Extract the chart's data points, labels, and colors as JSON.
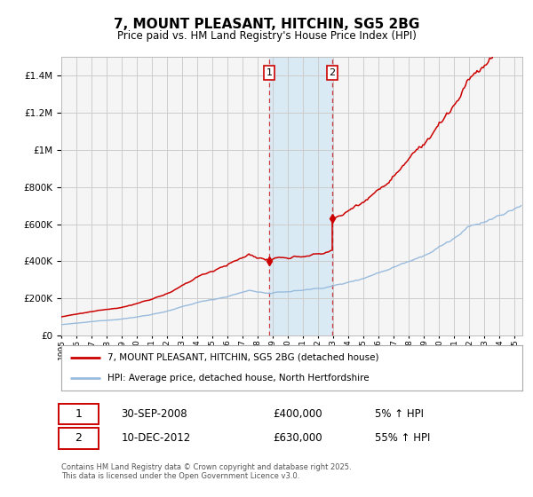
{
  "title": "7, MOUNT PLEASANT, HITCHIN, SG5 2BG",
  "subtitle": "Price paid vs. HM Land Registry's House Price Index (HPI)",
  "ylim": [
    0,
    1500000
  ],
  "yticks": [
    0,
    200000,
    400000,
    600000,
    800000,
    1000000,
    1200000,
    1400000
  ],
  "ytick_labels": [
    "£0",
    "£200K",
    "£400K",
    "£600K",
    "£800K",
    "£1M",
    "£1.2M",
    "£1.4M"
  ],
  "background_color": "#ffffff",
  "plot_bg_color": "#f5f5f5",
  "grid_color": "#cccccc",
  "line1_color": "#cc0000",
  "line2_color": "#99bbdd",
  "shade_color": "#daeaf5",
  "event1_year": 2008.75,
  "event2_year": 2012.92,
  "event1_price": 400000,
  "event2_price": 630000,
  "event1_label": "1",
  "event2_label": "2",
  "event1_date": "30-SEP-2008",
  "event1_price_str": "£400,000",
  "event1_hpi": "5% ↑ HPI",
  "event2_date": "10-DEC-2012",
  "event2_price_str": "£630,000",
  "event2_hpi": "55% ↑ HPI",
  "legend1_label": "7, MOUNT PLEASANT, HITCHIN, SG5 2BG (detached house)",
  "legend2_label": "HPI: Average price, detached house, North Hertfordshire",
  "footnote": "Contains HM Land Registry data © Crown copyright and database right 2025.\nThis data is licensed under the Open Government Licence v3.0.",
  "xstart": 1995,
  "xend": 2025.5
}
